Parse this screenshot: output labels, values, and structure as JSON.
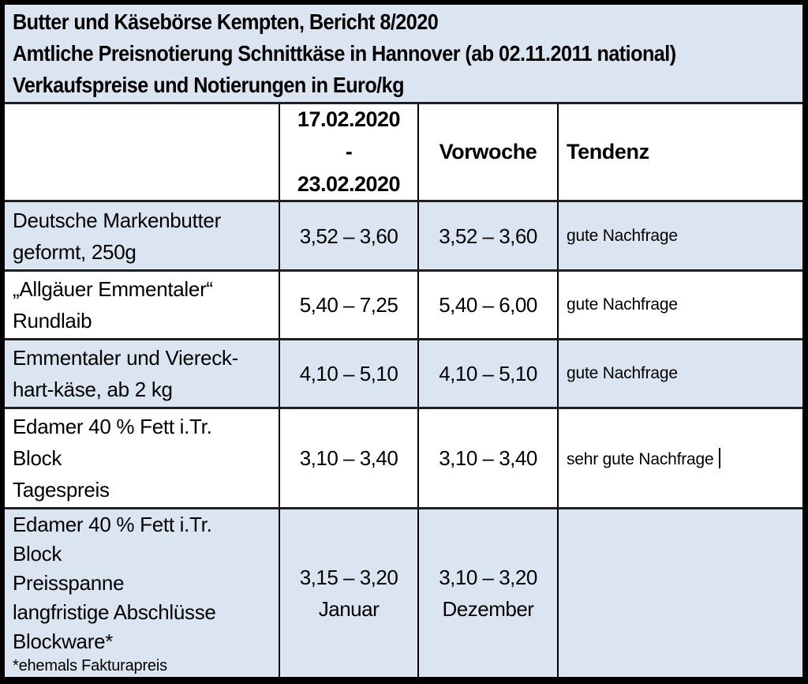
{
  "title": {
    "line1": "Butter und Käsebörse Kempten, Bericht 8/2020",
    "line2": "Amtliche Preisnotierung Schnittkäse in Hannover (ab 02.11.2011 national)",
    "line3": "Verkaufspreise und Notierungen in Euro/kg"
  },
  "columns": {
    "period": "17.02.2020\n-\n23.02.2020",
    "vorwoche": "Vorwoche",
    "tendenz": "Tendenz"
  },
  "rows": [
    {
      "product": "Deutsche Markenbutter\ngeformt, 250g",
      "period": "3,52 – 3,60",
      "vorwoche": "3,52 – 3,60",
      "tendenz": "gute Nachfrage"
    },
    {
      "product": "„Allgäuer Emmentaler“\nRundlaib",
      "period": "5,40 – 7,25",
      "vorwoche": "5,40 – 6,00",
      "tendenz": "gute Nachfrage"
    },
    {
      "product": "Emmentaler und Viereck-\nhart-käse, ab 2 kg",
      "period": "4,10 – 5,10",
      "vorwoche": "4,10 – 5,10",
      "tendenz": "gute Nachfrage"
    },
    {
      "product": "Edamer 40 % Fett i.Tr.\nBlock\nTagespreis",
      "period": "3,10 – 3,40",
      "vorwoche": "3,10 – 3,40",
      "tendenz": "sehr gute Nachfrage"
    },
    {
      "product": "Edamer 40 % Fett i.Tr.\nBlock\nPreisspanne\nlangfristige Abschlüsse\nBlockware*",
      "footnote": "*ehemals Fakturapreis",
      "period": "3,15 – 3,20\nJanuar",
      "vorwoche": "3,10 – 3,20\nDezember",
      "tendenz": ""
    }
  ],
  "colors": {
    "row_highlight": "#dbe5f1",
    "border": "#000000",
    "text": "#000000"
  }
}
